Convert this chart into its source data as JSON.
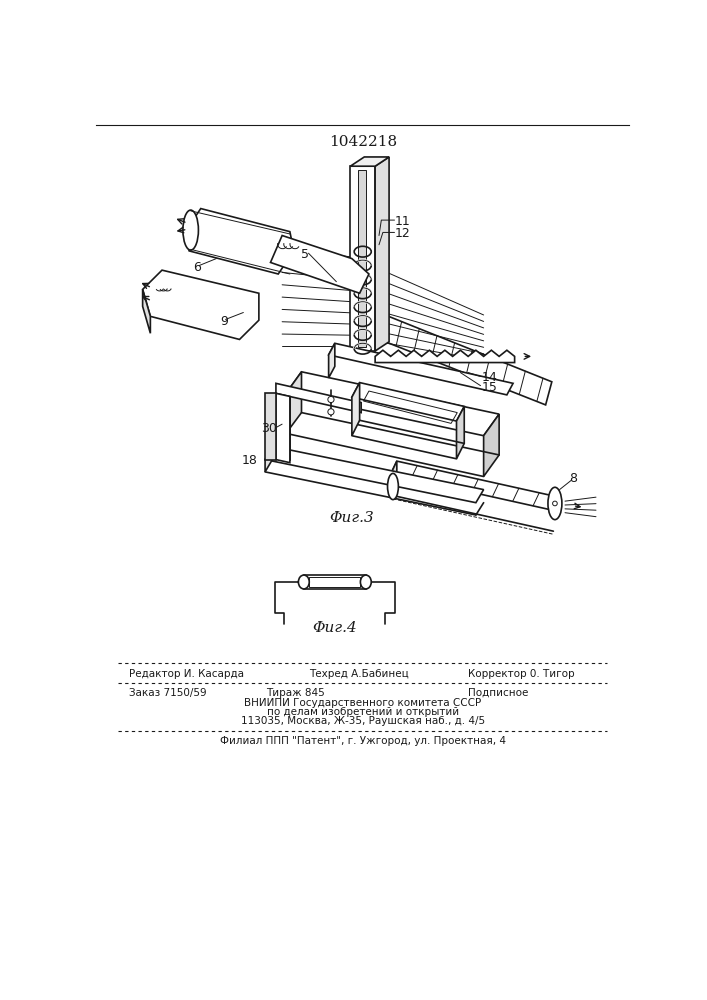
{
  "patent_number": "1042218",
  "fig3_label": "Φиг.3",
  "fig4_label": "Φиг.4",
  "footer_editor": "Редактор И. Касарда",
  "footer_tech": "Техред А.Бабинец",
  "footer_corrector": "Корректор 0. Тигор",
  "footer_order": "Заказ 7150/59",
  "footer_tirazh": "Тираж 845",
  "footer_podp": "Подписное",
  "footer_vniip1": "ВНИИПИ Государственного комитета СССР",
  "footer_vniip2": "по делам изобретений и открытий",
  "footer_addr": "113035, Москва, Ж-35, Раушская наб., д. 4/5",
  "footer_filial": "Филиал ППП \"Патент\", г. Ужгород, ул. Проектная, 4",
  "bg_color": "#ffffff",
  "lc": "#1a1a1a"
}
